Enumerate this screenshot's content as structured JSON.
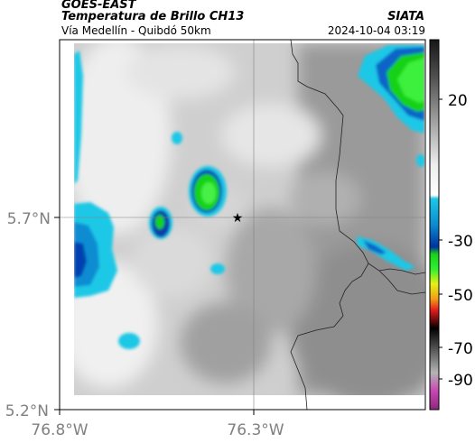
{
  "header": {
    "satellite": "GOES-EAST",
    "product": "Temperatura de Brillo CH13",
    "region": "Vía Medellín - Quibdó 50km",
    "agency": "SIATA",
    "timestamp": "2024-10-04 03:19"
  },
  "map": {
    "lat_labels": [
      "5.7°N",
      "5.2°N"
    ],
    "lon_labels": [
      "76.8°W",
      "76.3°W"
    ],
    "marker_icon": "star-icon"
  },
  "colorbar": {
    "ticks": [
      "20",
      "-30",
      "-50",
      "-70",
      "-90"
    ],
    "colors": {
      "cyan": "#1ec8e6",
      "blue": "#0050c8",
      "green": "#19e619",
      "yellow": "#f0f014",
      "red": "#e61e1e",
      "magenta": "#c846b4"
    }
  },
  "colors": {
    "cloud_bright": "#ececec",
    "cloud_mid": "#a0a0a0",
    "boundary": "#222222"
  }
}
